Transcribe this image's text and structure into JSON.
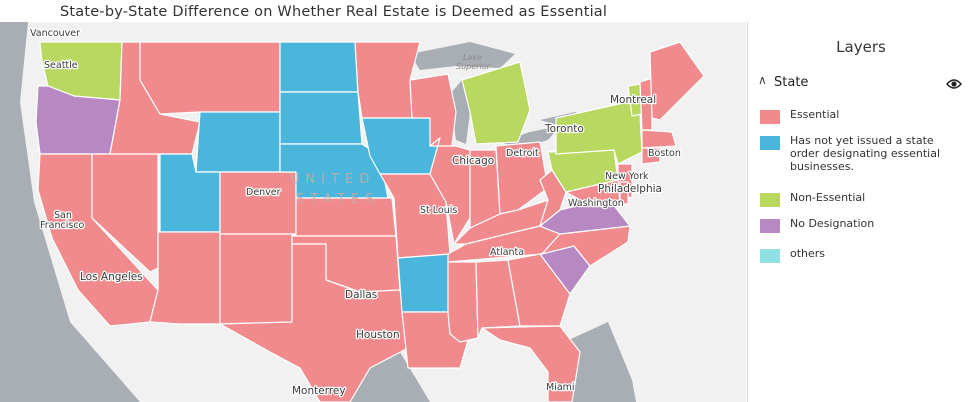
{
  "title": "State-by-State Difference on Whether Real Estate is Deemed as Essential",
  "map": {
    "country_label_line1": "UNITED",
    "country_label_line2": "STATES",
    "lakes": [
      "Lake",
      "Superior"
    ],
    "cities": {
      "vancouver": "Vancouver",
      "seattle": "Seattle",
      "montreal": "Montreal",
      "toronto": "Toronto",
      "detroit": "Detroit",
      "chicago": "Chicago",
      "boston": "Boston",
      "new_york": "New York",
      "philadelphia": "Philadelphia",
      "washington": "Washington",
      "denver": "Denver",
      "st_louis": "St Louis",
      "san_francisco_1": "San",
      "san_francisco_2": "Francisco",
      "los_angeles": "Los Angeles",
      "dallas": "Dallas",
      "atlanta": "Atlanta",
      "houston": "Houston",
      "monterrey": "Monterrey",
      "miami": "Miami"
    },
    "states": [
      {
        "state": "WA",
        "category": "Non-Essential"
      },
      {
        "state": "OR",
        "category": "No Designation"
      },
      {
        "state": "CA",
        "category": "Essential"
      },
      {
        "state": "NV",
        "category": "Essential"
      },
      {
        "state": "ID",
        "category": "Essential"
      },
      {
        "state": "MT",
        "category": "Essential"
      },
      {
        "state": "WY",
        "category": "Has not yet issued a state order designating essential businesses."
      },
      {
        "state": "UT",
        "category": "Has not yet issued a state order designating essential businesses."
      },
      {
        "state": "AZ",
        "category": "Essential"
      },
      {
        "state": "CO",
        "category": "Essential"
      },
      {
        "state": "NM",
        "category": "Essential"
      },
      {
        "state": "ND",
        "category": "Has not yet issued a state order designating essential businesses."
      },
      {
        "state": "SD",
        "category": "Has not yet issued a state order designating essential businesses."
      },
      {
        "state": "NE",
        "category": "Has not yet issued a state order designating essential businesses."
      },
      {
        "state": "KS",
        "category": "Essential"
      },
      {
        "state": "OK",
        "category": "Essential"
      },
      {
        "state": "TX",
        "category": "Essential"
      },
      {
        "state": "MN",
        "category": "Essential"
      },
      {
        "state": "IA",
        "category": "Has not yet issued a state order designating essential businesses."
      },
      {
        "state": "MO",
        "category": "Essential"
      },
      {
        "state": "AR",
        "category": "Has not yet issued a state order designating essential businesses."
      },
      {
        "state": "LA",
        "category": "Essential"
      },
      {
        "state": "WI",
        "category": "Essential"
      },
      {
        "state": "IL",
        "category": "Essential"
      },
      {
        "state": "MI",
        "category": "Non-Essential"
      },
      {
        "state": "IN",
        "category": "Essential"
      },
      {
        "state": "OH",
        "category": "Essential"
      },
      {
        "state": "KY",
        "category": "Essential"
      },
      {
        "state": "TN",
        "category": "Essential"
      },
      {
        "state": "MS",
        "category": "Essential"
      },
      {
        "state": "AL",
        "category": "Essential"
      },
      {
        "state": "GA",
        "category": "Essential"
      },
      {
        "state": "FL",
        "category": "Essential"
      },
      {
        "state": "SC",
        "category": "No Designation"
      },
      {
        "state": "NC",
        "category": "Essential"
      },
      {
        "state": "VA",
        "category": "No Designation"
      },
      {
        "state": "WV",
        "category": "Essential"
      },
      {
        "state": "PA",
        "category": "Non-Essential"
      },
      {
        "state": "NY",
        "category": "Non-Essential"
      },
      {
        "state": "VT",
        "category": "Non-Essential"
      },
      {
        "state": "NH",
        "category": "Essential"
      },
      {
        "state": "ME",
        "category": "Essential"
      },
      {
        "state": "MA",
        "category": "Essential"
      },
      {
        "state": "CT",
        "category": "Essential"
      },
      {
        "state": "NJ",
        "category": "Essential"
      },
      {
        "state": "MD",
        "category": "Essential"
      },
      {
        "state": "DE",
        "category": "Essential"
      }
    ]
  },
  "panel": {
    "title": "Layers",
    "layer_name": "State",
    "legend": [
      {
        "label": "Essential",
        "color": "#f08a8c"
      },
      {
        "label": "Has not yet issued a state order designating essential businesses.",
        "color": "#4ab6dc"
      },
      {
        "label": "Non-Essential",
        "color": "#b9d85f"
      },
      {
        "label": "No Designation",
        "color": "#b888c2"
      },
      {
        "label": "others",
        "color": "#8fe0e3"
      }
    ]
  },
  "colors": {
    "Essential": "#f08a8c",
    "Has not yet issued a state order designating essential businesses.": "#4ab6dc",
    "Non-Essential": "#b9d85f",
    "No Designation": "#b888c2",
    "others": "#8fe0e3",
    "land": "#f1f1f1",
    "water": "#a8aeb3",
    "border": "#ffffff"
  }
}
